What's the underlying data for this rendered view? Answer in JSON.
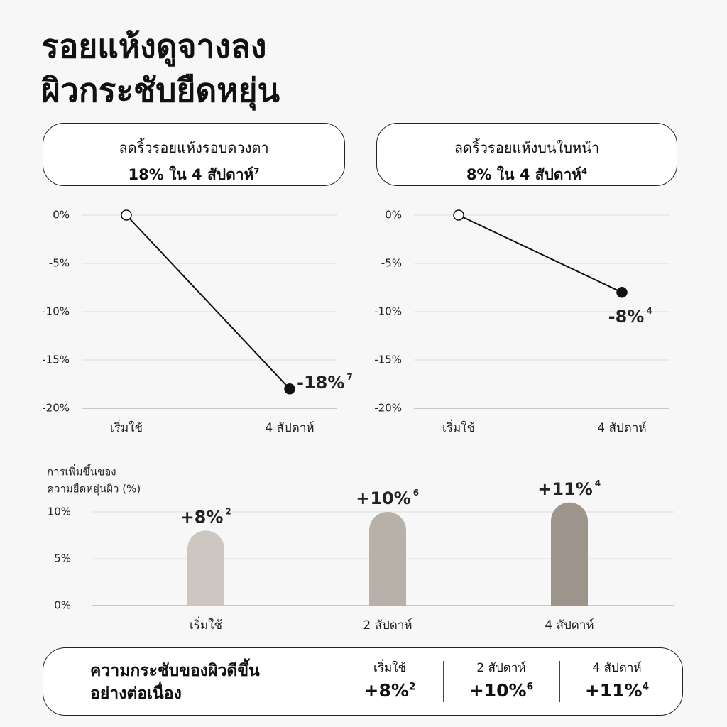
{
  "header": {
    "title_lines": [
      "รอยแห้งดูจางลง",
      "ผิวกระชับยืดหยุ่น"
    ]
  },
  "chart_data": [
    {
      "type": "line",
      "subtitle": "ลดริ้วรอยแห้งรอบดวงตา",
      "headline": "18% ใน 4 สัปดาห์",
      "headline_note": "7",
      "categories": [
        "เริ่มใช้",
        "4 สัปดาห์"
      ],
      "values": [
        0,
        -18
      ],
      "value_labels": [
        null,
        "-18%"
      ],
      "value_notes": [
        null,
        "7"
      ],
      "ylim": [
        -20,
        0
      ],
      "yticks": [
        {
          "value": 0,
          "label": "0%"
        },
        {
          "value": -5,
          "label": "-5%"
        },
        {
          "value": -10,
          "label": "-10%"
        },
        {
          "value": -15,
          "label": "-15%"
        },
        {
          "value": -20,
          "label": "-20%"
        }
      ],
      "grid": true,
      "color": "#111111"
    },
    {
      "type": "line",
      "subtitle": "ลดริ้วรอยแห้งบนใบหน้า",
      "headline": "8% ใน 4 สัปดาห์",
      "headline_note": "4",
      "categories": [
        "เริ่มใช้",
        "4 สัปดาห์"
      ],
      "values": [
        0,
        -8
      ],
      "value_labels": [
        null,
        "-8%"
      ],
      "value_notes": [
        null,
        "4"
      ],
      "ylim": [
        -20,
        0
      ],
      "yticks": [
        {
          "value": 0,
          "label": "0%"
        },
        {
          "value": -5,
          "label": "-5%"
        },
        {
          "value": -10,
          "label": "-10%"
        },
        {
          "value": -15,
          "label": "-15%"
        },
        {
          "value": -20,
          "label": "-20%"
        }
      ],
      "grid": true,
      "color": "#111111"
    },
    {
      "type": "bar",
      "ylabel_lines": [
        "การเพิ่มขึ้นของ",
        "ความยืดหยุ่นผิว (%)"
      ],
      "categories": [
        "เริ่มใช้",
        "2 สัปดาห์",
        "4 สัปดาห์"
      ],
      "values": [
        8,
        10,
        11
      ],
      "value_labels": [
        "+8%",
        "+10%",
        "+11%"
      ],
      "value_notes": [
        "2",
        "6",
        "4"
      ],
      "colors": [
        "#cbc6bf",
        "#b7b1a9",
        "#9d958c"
      ],
      "ylim": [
        0,
        12.5
      ],
      "yticks": [
        {
          "value": 0,
          "label": "0%"
        },
        {
          "value": 5,
          "label": "5%"
        },
        {
          "value": 10,
          "label": "10%"
        }
      ],
      "grid": true
    }
  ],
  "footer": {
    "title_lines": [
      "ความกระชับของผิวดีขึ้น",
      "อย่างต่อเนื่อง"
    ],
    "columns": [
      {
        "label": "เริ่มใช้",
        "value": "+8%",
        "note": "2"
      },
      {
        "label": "2 สัปดาห์",
        "value": "+10%",
        "note": "6"
      },
      {
        "label": "4 สัปดาห์",
        "value": "+11%",
        "note": "4"
      }
    ]
  }
}
